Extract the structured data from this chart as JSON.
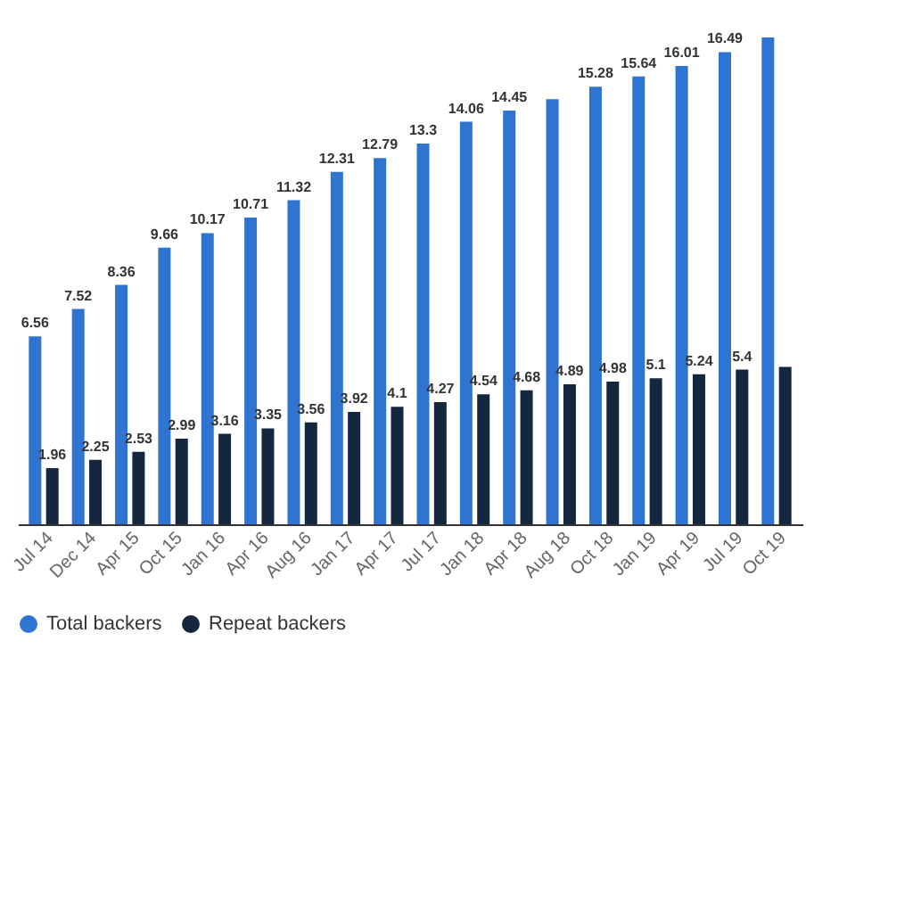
{
  "chart_data": {
    "type": "bar",
    "categories": [
      "Jul 14",
      "Dec 14",
      "Apr 15",
      "Oct 15",
      "Jan 16",
      "Apr 16",
      "Aug 16",
      "Jan 17",
      "Apr 17",
      "Jul 17",
      "Jan 18",
      "Apr 18",
      "Aug 18",
      "Oct 18",
      "Jan 19",
      "Apr 19",
      "Jul 19",
      "Oct 19"
    ],
    "series": [
      {
        "name": "Total backers",
        "color": "#2f74d0",
        "values": [
          6.56,
          7.52,
          8.36,
          9.66,
          10.17,
          10.71,
          11.32,
          12.31,
          12.79,
          13.3,
          14.06,
          14.45,
          14.85,
          15.28,
          15.64,
          16.01,
          16.49,
          17.0
        ],
        "value_labels": [
          "6.56",
          "7.52",
          "8.36",
          "9.66",
          "10.17",
          "10.71",
          "11.32",
          "12.31",
          "12.79",
          "13.3",
          "14.06",
          "14.45",
          null,
          "15.28",
          "15.64",
          "16.01",
          "16.49",
          null
        ]
      },
      {
        "name": "Repeat backers",
        "color": "#14273f",
        "values": [
          1.96,
          2.25,
          2.53,
          2.99,
          3.16,
          3.35,
          3.56,
          3.92,
          4.1,
          4.27,
          4.54,
          4.68,
          4.89,
          4.98,
          5.1,
          5.24,
          5.4,
          5.5
        ],
        "value_labels": [
          "1.96",
          "2.25",
          "2.53",
          "2.99",
          "3.16",
          "3.35",
          "3.56",
          "3.92",
          "4.1",
          "4.27",
          "4.54",
          "4.68",
          "4.89",
          "4.98",
          "5.1",
          "5.24",
          "5.4",
          null
        ]
      }
    ],
    "legend": "bottom"
  }
}
